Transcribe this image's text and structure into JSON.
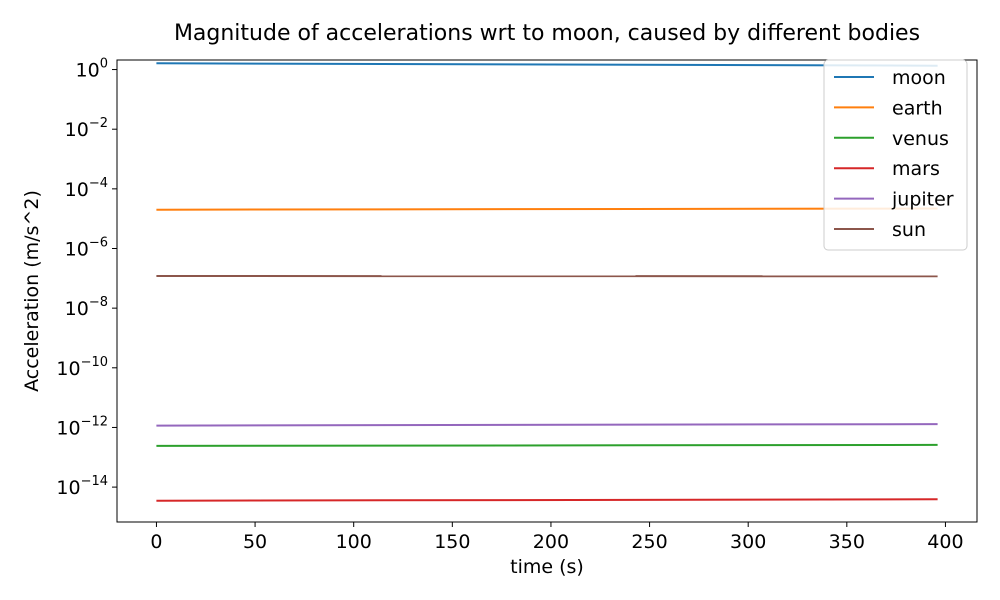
{
  "chart_data": {
    "type": "line",
    "title": "Magnitude of accelerations wrt to moon, caused by different bodies",
    "xlabel": "time (s)",
    "ylabel": "Acceleration (m/s^2)",
    "yscale": "log",
    "xlim": [
      -20,
      416
    ],
    "ylim_log10": [
      -15.17,
      0.32
    ],
    "xticks": [
      0,
      50,
      100,
      150,
      200,
      250,
      300,
      350,
      400
    ],
    "ytick_exponents": [
      0,
      -2,
      -4,
      -6,
      -8,
      -10,
      -12,
      -14
    ],
    "grid": false,
    "legend": "top-right",
    "series": [
      {
        "name": "moon",
        "color": "#1f77b4",
        "x": [
          0,
          396
        ],
        "y": [
          1.62,
          1.35
        ]
      },
      {
        "name": "earth",
        "color": "#ff7f0e",
        "x": [
          0,
          396
        ],
        "y": [
          2e-05,
          2.2e-05
        ]
      },
      {
        "name": "venus",
        "color": "#2ca02c",
        "x": [
          0,
          396
        ],
        "y": [
          2.4e-13,
          2.6e-13
        ]
      },
      {
        "name": "mars",
        "color": "#d62728",
        "x": [
          0,
          396
        ],
        "y": [
          3.5e-15,
          3.9e-15
        ]
      },
      {
        "name": "jupiter",
        "color": "#9467bd",
        "x": [
          0,
          396
        ],
        "y": [
          1.15e-12,
          1.3e-12
        ]
      },
      {
        "name": "sun",
        "color": "#8c564b",
        "x": [
          0,
          396
        ],
        "y": [
          1.2e-07,
          1.17e-07
        ]
      }
    ]
  }
}
